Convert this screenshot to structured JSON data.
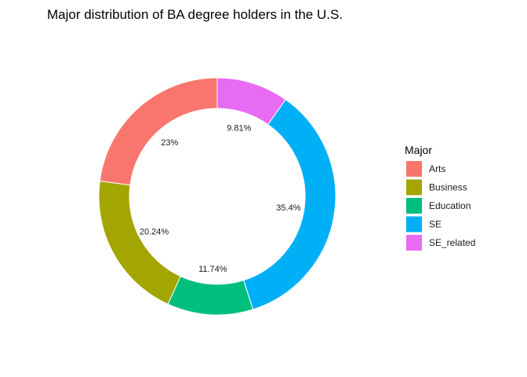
{
  "chart_data": {
    "type": "pie",
    "subtype": "donut",
    "title": "Major distribution of BA degree holders in the U.S.",
    "legend": {
      "title": "Major",
      "placement": "right"
    },
    "slices": [
      {
        "label": "Arts",
        "value": 23,
        "value_label": "23%",
        "color": "#F8766D"
      },
      {
        "label": "Business",
        "value": 20.24,
        "value_label": "20.24%",
        "color": "#A3A500"
      },
      {
        "label": "Education",
        "value": 11.74,
        "value_label": "11.74%",
        "color": "#00BF7D"
      },
      {
        "label": "SE",
        "value": 35.4,
        "value_label": "35.4%",
        "color": "#00B0F6"
      },
      {
        "label": "SE_related",
        "value": 9.81,
        "value_label": "9.81%",
        "color": "#E76BF3"
      }
    ],
    "order": "counter-clockwise from top"
  }
}
